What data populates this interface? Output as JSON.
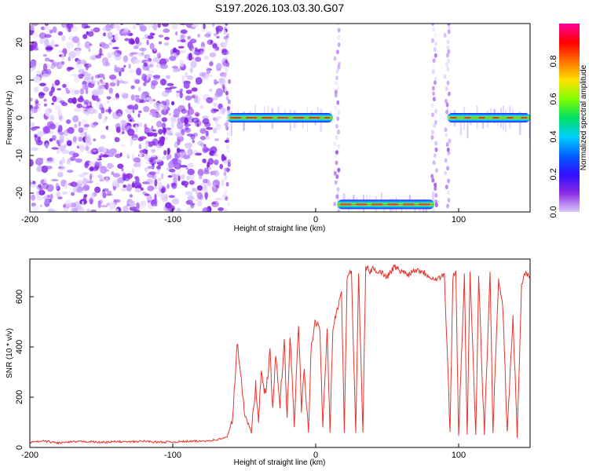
{
  "title": "S197.2026.103.03.30.G07",
  "chart_data": [
    {
      "type": "heatmap",
      "xlabel": "Height of straight line (km)",
      "ylabel": "Frequency (Hz)",
      "xlim": [
        -200,
        150
      ],
      "ylim": [
        -25,
        25
      ],
      "x_ticks": [
        -200,
        -100,
        0,
        100
      ],
      "y_ticks": [
        -20,
        -10,
        0,
        10,
        20
      ],
      "colorbar": {
        "label": "Normalized spectral amplitude",
        "range": [
          0.0,
          1.0
        ],
        "ticks": [
          0.0,
          0.2,
          0.4,
          0.6,
          0.8
        ],
        "colors": [
          "#dcc8ff",
          "#8a2be2",
          "#3010ff",
          "#0060ff",
          "#00d0ff",
          "#00e060",
          "#80ff00",
          "#ffe000",
          "#ff7000",
          "#ff0000",
          "#ff00a0"
        ]
      },
      "features": [
        {
          "region": "scattered noise",
          "x_range": [
            -200,
            -62
          ],
          "freq_range": [
            -25,
            25
          ]
        },
        {
          "region": "tone near 0 Hz",
          "x_range": [
            -62,
            12
          ],
          "freq_hz": 0
        },
        {
          "region": "low tone",
          "x_range": [
            15,
            83
          ],
          "freq_hz": -23
        },
        {
          "region": "tone at 0 Hz",
          "x_range": [
            92,
            150
          ],
          "freq_hz": 0
        }
      ]
    },
    {
      "type": "line",
      "xlabel": "Height of straight line (km)",
      "ylabel": "SNR (10 * v/v)",
      "xlim": [
        -200,
        150
      ],
      "ylim": [
        0,
        750
      ],
      "x_ticks": [
        -200,
        -100,
        0,
        100
      ],
      "y_ticks": [
        0,
        200,
        400,
        600
      ],
      "color": "#e8322a",
      "x": [
        -200,
        -190,
        -180,
        -170,
        -160,
        -150,
        -140,
        -130,
        -120,
        -110,
        -100,
        -90,
        -80,
        -70,
        -62,
        -58,
        -55,
        -50,
        -45,
        -42,
        -40,
        -38,
        -35,
        -32,
        -30,
        -28,
        -25,
        -22,
        -20,
        -18,
        -15,
        -12,
        -10,
        -8,
        -5,
        -3,
        0,
        3,
        5,
        8,
        10,
        12,
        15,
        18,
        20,
        22,
        25,
        28,
        30,
        33,
        35,
        38,
        40,
        45,
        50,
        55,
        60,
        65,
        70,
        75,
        80,
        85,
        90,
        94,
        96,
        98,
        100,
        104,
        106,
        108,
        112,
        114,
        118,
        122,
        124,
        128,
        131,
        134,
        138,
        141,
        144,
        146,
        150
      ],
      "y": [
        20,
        25,
        18,
        22,
        24,
        20,
        23,
        22,
        25,
        21,
        22,
        24,
        25,
        30,
        40,
        120,
        420,
        150,
        60,
        250,
        100,
        300,
        200,
        380,
        150,
        360,
        170,
        420,
        120,
        450,
        80,
        500,
        150,
        300,
        60,
        420,
        500,
        460,
        80,
        480,
        60,
        480,
        550,
        620,
        60,
        680,
        700,
        60,
        690,
        60,
        720,
        700,
        710,
        700,
        680,
        720,
        700,
        690,
        710,
        700,
        680,
        670,
        690,
        60,
        680,
        700,
        50,
        680,
        50,
        690,
        50,
        690,
        50,
        700,
        60,
        670,
        550,
        60,
        520,
        40,
        650,
        700,
        680
      ]
    }
  ]
}
